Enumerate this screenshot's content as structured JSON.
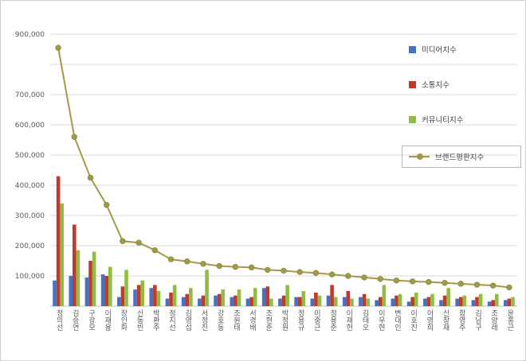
{
  "page": {
    "background": "#ffffff",
    "border_color": "#cfcfcf"
  },
  "legend": {
    "items": [
      {
        "label": "미디어지수",
        "color": "#4472c4",
        "type": "bar"
      },
      {
        "label": "소통지수",
        "color": "#c0392b",
        "type": "bar"
      },
      {
        "label": "커뮤니티지수",
        "color": "#90bc44",
        "type": "bar"
      },
      {
        "label": "브랜드평판지수",
        "color": "#a39a45",
        "type": "line",
        "boxed": true
      }
    ]
  },
  "chart_data": {
    "type": "bar",
    "subtype": "grouped bars with line overlay",
    "title": "",
    "xlabel": "",
    "ylabel": "",
    "ylim": [
      0,
      900000
    ],
    "grid": true,
    "legend_position": "top-right",
    "y_gridline_values": [
      100000,
      200000,
      300000,
      400000,
      500000,
      600000,
      700000,
      800000,
      900000
    ],
    "y_tick_values": [
      900000,
      700000,
      600000,
      500000,
      400000,
      300000,
      200000,
      100000
    ],
    "y_tick_labels": [
      "900,000",
      "700,000",
      "600,000",
      "500,000",
      "400,000",
      "300,000",
      "200,000",
      "100,000"
    ],
    "categories": [
      "정의선",
      "김승연",
      "구광모",
      "이재용",
      "장인화",
      "신동빈",
      "박환주",
      "정지선",
      "김영섭",
      "서정진",
      "강호동",
      "조원태",
      "서경배",
      "조현준",
      "박정원",
      "정용규",
      "이중근",
      "정용준",
      "이재현",
      "김태오",
      "이우현",
      "변대인",
      "이호진",
      "이영희",
      "신창재",
      "함영주",
      "김남구",
      "조양래",
      "윤홍근"
    ],
    "series": [
      {
        "name": "미디어지수",
        "type": "bar",
        "color": "#4472c4",
        "values": [
          85000,
          100000,
          95000,
          105000,
          30000,
          55000,
          60000,
          25000,
          30000,
          25000,
          35000,
          30000,
          25000,
          60000,
          25000,
          30000,
          25000,
          35000,
          30000,
          30000,
          20000,
          25000,
          15000,
          25000,
          20000,
          25000,
          20000,
          15000,
          20000
        ]
      },
      {
        "name": "소통지수",
        "type": "bar",
        "color": "#c0392b",
        "values": [
          430000,
          270000,
          150000,
          100000,
          65000,
          70000,
          70000,
          45000,
          40000,
          35000,
          40000,
          35000,
          30000,
          65000,
          35000,
          30000,
          45000,
          70000,
          50000,
          40000,
          30000,
          35000,
          30000,
          30000,
          35000,
          30000,
          30000,
          20000,
          25000
        ]
      },
      {
        "name": "커뮤니티지수",
        "type": "bar",
        "color": "#90bc44",
        "values": [
          340000,
          185000,
          180000,
          130000,
          120000,
          85000,
          50000,
          70000,
          60000,
          120000,
          55000,
          55000,
          60000,
          25000,
          70000,
          50000,
          35000,
          30000,
          25000,
          25000,
          70000,
          40000,
          45000,
          40000,
          60000,
          35000,
          40000,
          40000,
          30000
        ]
      },
      {
        "name": "브랜드평판지수",
        "type": "line",
        "color": "#a39a45",
        "values": [
          855000,
          560000,
          425000,
          335000,
          215000,
          210000,
          185000,
          155000,
          148000,
          140000,
          133000,
          130000,
          128000,
          120000,
          117000,
          113000,
          110000,
          105000,
          100000,
          95000,
          90000,
          85000,
          82000,
          80000,
          77000,
          74000,
          71000,
          68000,
          62000
        ]
      }
    ]
  }
}
